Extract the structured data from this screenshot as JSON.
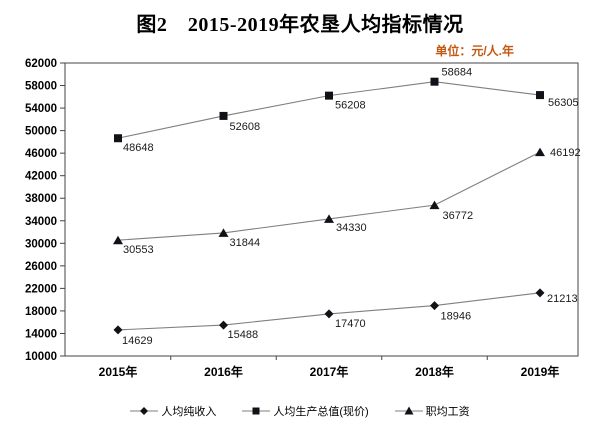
{
  "title": "图2　2015-2019年农垦人均指标情况",
  "unit_label": "单位：元/人.年",
  "colors": {
    "unit_text": "#C45911",
    "series_line": "#7f7f7f",
    "marker_fill": "#111118",
    "axis_frame": "#444444",
    "axis_text": "#000000",
    "data_label_text": "#1a1a1a"
  },
  "chart_data": {
    "type": "line",
    "categories": [
      "2015年",
      "2016年",
      "2017年",
      "2018年",
      "2019年"
    ],
    "series": [
      {
        "name": "人均纯收入",
        "marker": "diamond",
        "values": [
          14629,
          15488,
          17470,
          18946,
          21213
        ],
        "label_offsets": [
          [
            4,
            14
          ],
          [
            4,
            13
          ],
          [
            6,
            13
          ],
          [
            6,
            14
          ],
          [
            7,
            9
          ]
        ]
      },
      {
        "name": "人均生产总值(现价)",
        "marker": "square",
        "values": [
          48648,
          52608,
          56208,
          58684,
          56305
        ],
        "label_offsets": [
          [
            5,
            13
          ],
          [
            6,
            14
          ],
          [
            6,
            13
          ],
          [
            7,
            -6
          ],
          [
            8,
            11
          ]
        ]
      },
      {
        "name": "职均工资",
        "marker": "triangle",
        "values": [
          30553,
          31844,
          34330,
          36772,
          46192
        ],
        "label_offsets": [
          [
            5,
            13
          ],
          [
            6,
            13
          ],
          [
            7,
            12
          ],
          [
            8,
            14
          ],
          [
            10,
            4
          ]
        ]
      }
    ],
    "ylim": [
      10000,
      62000
    ],
    "ystep": 4000,
    "grid": false,
    "legend_position": "bottom",
    "xlabel": "",
    "ylabel": ""
  }
}
